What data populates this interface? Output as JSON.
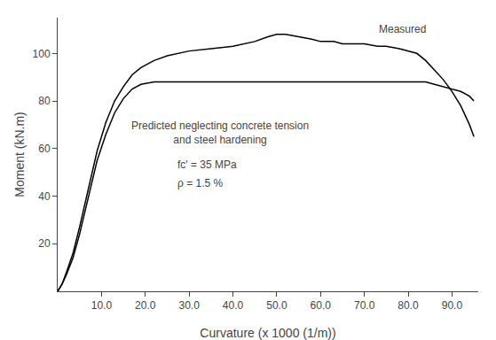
{
  "chart_data": {
    "type": "line",
    "xlabel": "Curvature (x 1000 (1/m))",
    "ylabel": "Moment (kN.m)",
    "xlim": [
      0,
      96
    ],
    "ylim": [
      0,
      115
    ],
    "xticks": [
      {
        "value": 10,
        "label": "10.0"
      },
      {
        "value": 20,
        "label": "20.0"
      },
      {
        "value": 30,
        "label": "30.0"
      },
      {
        "value": 40,
        "label": "40.0"
      },
      {
        "value": 50,
        "label": "50.0"
      },
      {
        "value": 60,
        "label": "60.0"
      },
      {
        "value": 70,
        "label": "70.0"
      },
      {
        "value": 80,
        "label": "80.0"
      },
      {
        "value": 90,
        "label": "90.0"
      }
    ],
    "yticks": [
      20,
      40,
      60,
      80,
      100
    ],
    "grid": false,
    "series": [
      {
        "color": "#000000",
        "x": [
          0,
          1.0,
          2.0,
          3.5,
          5,
          7,
          9,
          11,
          13,
          15,
          17,
          19,
          22,
          25,
          30,
          35,
          40,
          45,
          48,
          50,
          52,
          55,
          58,
          60,
          63,
          65,
          68,
          70,
          73,
          75,
          78,
          80,
          82,
          84,
          86,
          88,
          90,
          92,
          94,
          95
        ],
        "values": [
          0,
          3,
          8,
          16,
          27,
          43,
          59,
          71,
          80,
          86,
          91,
          94,
          97,
          99,
          101,
          102,
          103,
          105,
          107,
          108,
          108,
          107,
          106,
          105,
          105,
          104,
          104,
          104,
          103,
          103,
          102,
          101,
          100,
          97,
          93,
          89,
          84,
          78,
          70,
          65
        ]
      },
      {
        "color": "#000000",
        "x": [
          0,
          1.0,
          2.0,
          3.5,
          5,
          7,
          9,
          11,
          13,
          15,
          17,
          19,
          22,
          25,
          30,
          35,
          40,
          45,
          50,
          55,
          60,
          65,
          70,
          74,
          76,
          78,
          80,
          82,
          84,
          86,
          88,
          90,
          92,
          94,
          95
        ],
        "values": [
          0,
          3,
          7,
          14,
          24,
          39,
          55,
          66,
          75,
          81,
          85,
          87,
          88,
          88,
          88,
          88,
          88,
          88,
          88,
          88,
          88,
          88,
          88,
          88,
          88,
          88,
          88,
          88,
          88,
          87,
          86,
          85,
          84,
          82,
          80
        ]
      }
    ],
    "annotations": [
      {
        "text": "Predicted neglecting concrete tension\nand steel hardening",
        "x": 37,
        "y": 73
      },
      {
        "text": "Measured",
        "x": 73,
        "y": 110
      },
      {
        "text": "fc′ = 35 MPa",
        "x": 27,
        "y": 50
      },
      {
        "text": "ρ = 1.5 %",
        "x": 27,
        "y": 42
      }
    ]
  }
}
